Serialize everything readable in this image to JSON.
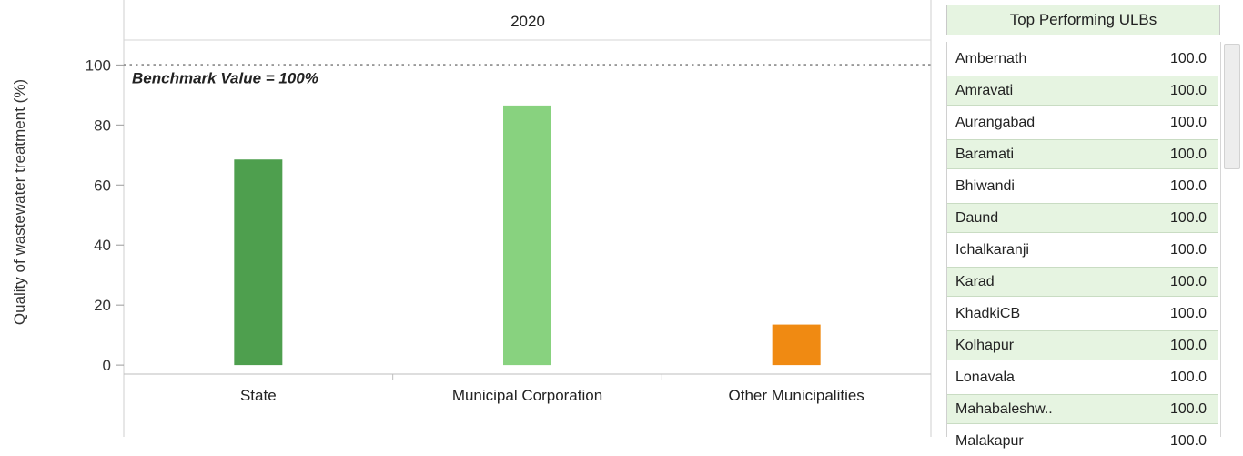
{
  "chart_data": {
    "type": "bar",
    "facet_title": "2020",
    "ylabel": "Quality of wastewater treatment (%)",
    "categories": [
      "State",
      "Municipal Corporation",
      "Other Municipalities"
    ],
    "values": [
      68.5,
      86.5,
      13.5
    ],
    "colors": [
      "#4e9f4e",
      "#88d27f",
      "#f08a12"
    ],
    "ylim": [
      -3,
      108
    ],
    "yticks": [
      0,
      20,
      40,
      60,
      80,
      100
    ],
    "benchmark": {
      "value": 100,
      "label": "Benchmark Value = 100%"
    },
    "grid": false
  },
  "sidebar": {
    "title": "Top Performing ULBs",
    "rows": [
      {
        "name": "Ambernath",
        "value": "100.0"
      },
      {
        "name": "Amravati",
        "value": "100.0"
      },
      {
        "name": "Aurangabad",
        "value": "100.0"
      },
      {
        "name": "Baramati",
        "value": "100.0"
      },
      {
        "name": "Bhiwandi",
        "value": "100.0"
      },
      {
        "name": "Daund",
        "value": "100.0"
      },
      {
        "name": "Ichalkaranji",
        "value": "100.0"
      },
      {
        "name": "Karad",
        "value": "100.0"
      },
      {
        "name": "KhadkiCB",
        "value": "100.0"
      },
      {
        "name": "Kolhapur",
        "value": "100.0"
      },
      {
        "name": "Lonavala",
        "value": "100.0"
      },
      {
        "name": "Mahabaleshw..",
        "value": "100.0"
      },
      {
        "name": "Malakapur",
        "value": "100.0"
      }
    ]
  }
}
